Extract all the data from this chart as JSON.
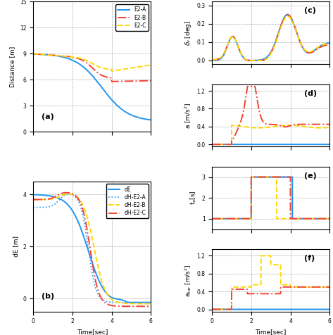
{
  "colors": {
    "blue": "#2196F3",
    "red": "#F44336",
    "yellow": "#FFD700"
  },
  "figsize": [
    4.73,
    4.76
  ],
  "dpi": 100,
  "panel_labels": [
    "(a)",
    "(b)",
    "(c)",
    "(d)",
    "(e)",
    "(f)"
  ],
  "xlim": [
    0,
    6
  ],
  "xticks": [
    0,
    2,
    4,
    6
  ],
  "dist_ylim": [
    0,
    15
  ],
  "dist_yticks": [
    0,
    3,
    6,
    9,
    12,
    15
  ],
  "dE_ylim": [
    -0.5,
    4.5
  ],
  "dE_yticks": [
    0,
    2,
    4
  ],
  "delta_ylim": [
    -0.02,
    0.32
  ],
  "delta_yticks": [
    0.0,
    0.1,
    0.2,
    0.3
  ],
  "a_ylim": [
    -0.05,
    1.35
  ],
  "a_yticks": [
    0.0,
    0.4,
    0.8,
    1.2
  ],
  "ta_ylim": [
    0.5,
    3.5
  ],
  "ta_yticks": [
    1,
    2,
    3
  ],
  "atar_ylim": [
    -0.05,
    1.35
  ],
  "atar_yticks": [
    0.0,
    0.4,
    0.8,
    1.2
  ]
}
